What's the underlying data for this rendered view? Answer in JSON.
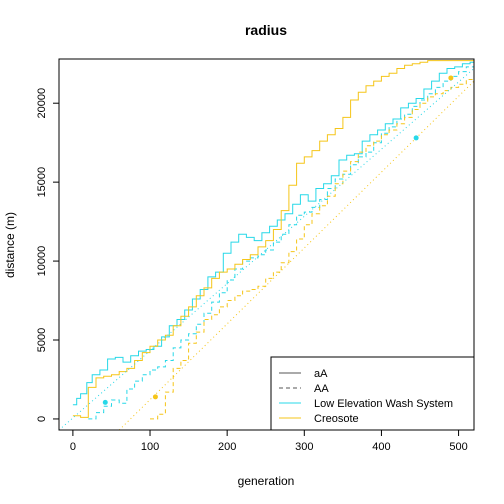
{
  "chart_data": {
    "type": "line",
    "title": "radius",
    "xlabel": "generation",
    "ylabel": "distance (m)",
    "xlim": [
      -18,
      520
    ],
    "ylim": [
      -700,
      22800
    ],
    "xticks": [
      0,
      100,
      200,
      300,
      400,
      500
    ],
    "yticks": [
      0,
      5000,
      10000,
      15000,
      20000
    ],
    "grid": false,
    "legend_position": "bottom-right",
    "legend": [
      {
        "label": "aA",
        "color": "#555555",
        "dash": "solid"
      },
      {
        "label": "AA",
        "color": "#555555",
        "dash": "dashed"
      },
      {
        "label": "Low Elevation Wash System",
        "color": "#27D8E8",
        "dash": "solid"
      },
      {
        "label": "Creosote",
        "color": "#F5C518",
        "dash": "solid"
      }
    ],
    "series": [
      {
        "name": "Low Elevation Wash System",
        "style": "solid",
        "color": "#27D8E8",
        "x": [
          0,
          5,
          10,
          18,
          25,
          35,
          45,
          55,
          65,
          75,
          85,
          95,
          105,
          115,
          125,
          135,
          145,
          155,
          165,
          175,
          185,
          195,
          205,
          215,
          225,
          235,
          245,
          255,
          265,
          275,
          285,
          295,
          305,
          315,
          325,
          335,
          345,
          355,
          365,
          375,
          385,
          395,
          405,
          415,
          425,
          435,
          445,
          455,
          465,
          475,
          485,
          495,
          505,
          515,
          520
        ],
        "y": [
          900,
          1300,
          1600,
          2300,
          2800,
          3100,
          3800,
          3900,
          3600,
          4000,
          4300,
          4400,
          4600,
          5200,
          5900,
          6300,
          6900,
          7600,
          8200,
          9000,
          9300,
          10500,
          11200,
          11700,
          11500,
          11300,
          11800,
          12200,
          12600,
          13000,
          13600,
          14200,
          13800,
          14600,
          14900,
          15400,
          16400,
          16700,
          16800,
          17600,
          18000,
          18300,
          18700,
          19000,
          19700,
          20000,
          20300,
          20900,
          21400,
          21900,
          22200,
          22300,
          22500,
          22600,
          22700
        ]
      },
      {
        "name": "Low Elevation Wash System",
        "style": "dashed",
        "color": "#27D8E8",
        "x": [
          20,
          30,
          40,
          50,
          60,
          70,
          80,
          90,
          100,
          110,
          120,
          130,
          140,
          150,
          160,
          170,
          180,
          190,
          200,
          210,
          220,
          230,
          240,
          250,
          260,
          270,
          280,
          290,
          300,
          310,
          320,
          330,
          340,
          350,
          360,
          370,
          380,
          390,
          400,
          410,
          420,
          430,
          440,
          450,
          460,
          470,
          480,
          490,
          500,
          510,
          520
        ],
        "y": [
          0,
          400,
          800,
          1200,
          1000,
          1900,
          2400,
          2800,
          3100,
          3300,
          3700,
          4500,
          5000,
          5400,
          6000,
          6700,
          7400,
          8000,
          8800,
          9500,
          10000,
          10200,
          10400,
          10700,
          11200,
          11700,
          12300,
          12900,
          13100,
          13400,
          13900,
          14600,
          15200,
          15500,
          16100,
          16600,
          16900,
          17500,
          18100,
          18500,
          19000,
          19300,
          19800,
          20200,
          20600,
          21000,
          21400,
          21700,
          22000,
          22300,
          22600
        ]
      },
      {
        "name": "Creosote",
        "style": "solid",
        "color": "#F5C518",
        "x": [
          0,
          10,
          20,
          30,
          40,
          50,
          60,
          70,
          80,
          90,
          100,
          110,
          120,
          130,
          140,
          150,
          160,
          170,
          180,
          190,
          200,
          210,
          220,
          230,
          240,
          250,
          260,
          270,
          280,
          290,
          300,
          310,
          320,
          330,
          340,
          350,
          360,
          370,
          380,
          390,
          400,
          410,
          420,
          430,
          440,
          450,
          460,
          470,
          480,
          490,
          500,
          510,
          520
        ],
        "y": [
          200,
          100,
          2000,
          2600,
          2700,
          2800,
          3000,
          3200,
          3700,
          4200,
          4600,
          5000,
          5300,
          5900,
          6500,
          7100,
          7800,
          8300,
          8900,
          9300,
          9500,
          9800,
          10100,
          10400,
          10900,
          11300,
          12000,
          13200,
          14800,
          16200,
          16600,
          17000,
          17600,
          18000,
          18400,
          19100,
          20200,
          20700,
          21100,
          21400,
          21700,
          21900,
          22200,
          22400,
          22500,
          22600,
          22700,
          22700,
          22700,
          22700,
          22700,
          22700,
          22700
        ]
      },
      {
        "name": "Creosote",
        "style": "dashed",
        "color": "#F5C518",
        "x": [
          100,
          110,
          120,
          130,
          140,
          150,
          160,
          170,
          180,
          190,
          200,
          210,
          220,
          230,
          240,
          250,
          260,
          270,
          280,
          290,
          300,
          310,
          320,
          330,
          340,
          350,
          360,
          370,
          380,
          390,
          400,
          410,
          420,
          430,
          440,
          450,
          460,
          470,
          480,
          490,
          500,
          510,
          520
        ],
        "y": [
          0,
          300,
          1700,
          3200,
          3700,
          4800,
          5500,
          6300,
          6600,
          7100,
          7500,
          7800,
          8100,
          8200,
          8400,
          8900,
          9300,
          9900,
          10600,
          11400,
          12300,
          13000,
          13500,
          14100,
          14900,
          15700,
          16300,
          16900,
          17300,
          17600,
          18000,
          18300,
          18700,
          19100,
          19600,
          20000,
          20400,
          20600,
          20800,
          21000,
          21200,
          21500,
          21800
        ]
      },
      {
        "name": "Low Elevation Wash System",
        "style": "dotted",
        "color": "#27D8E8",
        "x": [
          -18,
          520
        ],
        "y": [
          -700,
          22200
        ]
      },
      {
        "name": "Creosote",
        "style": "dotted",
        "color": "#F5C518",
        "x": [
          60,
          520
        ],
        "y": [
          -700,
          21400
        ]
      }
    ],
    "points": [
      {
        "name": "Low Elevation Wash System",
        "color": "#27D8E8",
        "x": 42,
        "y": 1050
      },
      {
        "name": "Low Elevation Wash System",
        "color": "#27D8E8",
        "x": 445,
        "y": 17800
      },
      {
        "name": "Creosote",
        "color": "#F5C518",
        "x": 107,
        "y": 1400
      },
      {
        "name": "Creosote",
        "color": "#F5C518",
        "x": 490,
        "y": 21600
      }
    ]
  }
}
